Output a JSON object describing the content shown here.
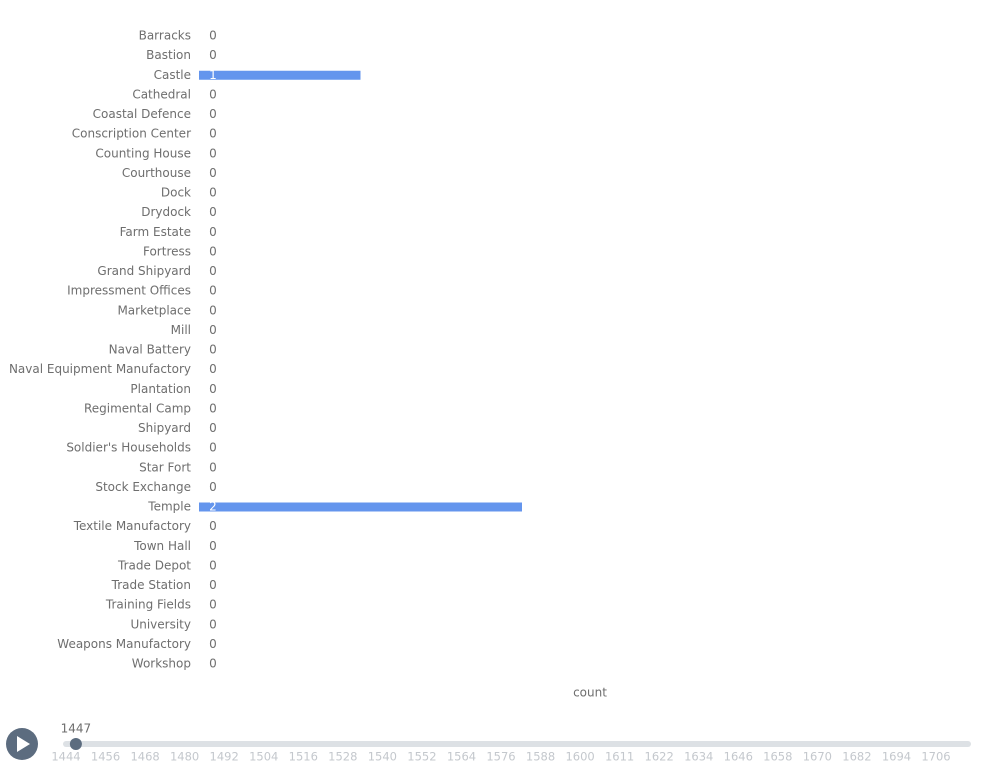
{
  "chart_data": {
    "type": "bar",
    "orientation": "horizontal",
    "color": "#6495ed",
    "categories": [
      "Barracks",
      "Bastion",
      "Castle",
      "Cathedral",
      "Coastal Defence",
      "Conscription Center",
      "Counting House",
      "Courthouse",
      "Dock",
      "Drydock",
      "Farm Estate",
      "Fortress",
      "Grand Shipyard",
      "Impressment Offices",
      "Marketplace",
      "Mill",
      "Naval Battery",
      "Naval Equipment Manufactory",
      "Plantation",
      "Regimental Camp",
      "Shipyard",
      "Soldier's Households",
      "Star Fort",
      "Stock Exchange",
      "Temple",
      "Textile Manufactory",
      "Town Hall",
      "Trade Depot",
      "Trade Station",
      "Training Fields",
      "University",
      "Weapons Manufactory",
      "Workshop"
    ],
    "values": [
      0,
      0,
      1,
      0,
      0,
      0,
      0,
      0,
      0,
      0,
      0,
      0,
      0,
      0,
      0,
      0,
      0,
      0,
      0,
      0,
      0,
      0,
      0,
      0,
      2,
      0,
      0,
      0,
      0,
      0,
      0,
      0,
      0
    ],
    "x_label": "count",
    "timeline": {
      "current": 1447,
      "ticks": [
        1444,
        1456,
        1468,
        1480,
        1492,
        1504,
        1516,
        1528,
        1540,
        1552,
        1564,
        1576,
        1588,
        1600,
        1611,
        1622,
        1634,
        1646,
        1658,
        1670,
        1682,
        1694,
        1706
      ]
    }
  }
}
